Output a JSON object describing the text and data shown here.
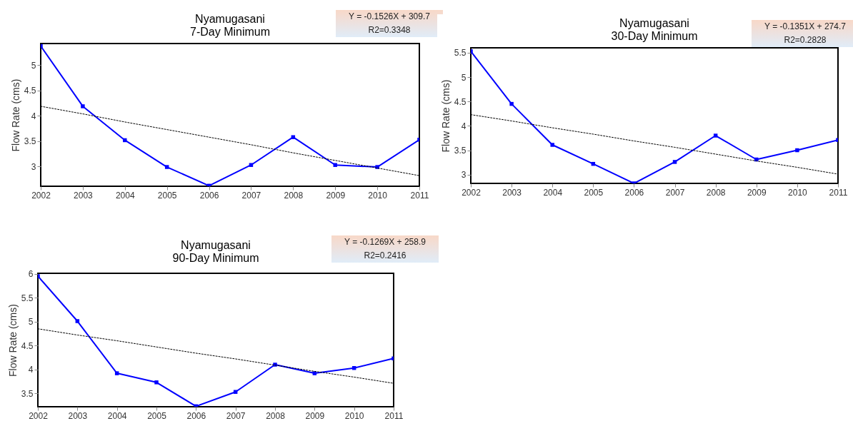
{
  "chart_data": [
    {
      "type": "line",
      "title": "Nyamugasani\n7-Day Minimum",
      "ylabel": "Flow Rate (cms)",
      "annotations": [
        "Y = -0.1526X + 309.7",
        "R2=0.3348"
      ],
      "x": [
        2002,
        2003,
        2004,
        2005,
        2006,
        2007,
        2008,
        2009,
        2010,
        2011
      ],
      "xlim": [
        2002,
        2011
      ],
      "xticks": [
        2002,
        2003,
        2004,
        2005,
        2006,
        2007,
        2008,
        2009,
        2010,
        2011
      ],
      "ylim": [
        2.61,
        5.43
      ],
      "yticks": [
        3,
        3.5,
        4,
        4.5,
        5
      ],
      "grid": false,
      "legend": false,
      "series": [
        {
          "color": "#0000ff",
          "marker": "square",
          "line_style": "solid",
          "values": [
            5.38,
            4.19,
            3.52,
            2.99,
            2.62,
            3.03,
            3.58,
            3.03,
            2.99,
            3.53
          ]
        },
        {
          "type": "line",
          "color": "#000000",
          "marker": "none",
          "line_style": "dotted",
          "values": [
            4.19,
            4.04,
            3.88,
            3.73,
            3.58,
            3.43,
            3.27,
            3.12,
            2.97,
            2.82
          ]
        }
      ]
    },
    {
      "type": "line",
      "title": "Nyamugasani\n30-Day Minimum",
      "ylabel": "Flow Rate (cms)",
      "annotations": [
        "Y = -0.1351X + 274.7",
        "R2=0.2828"
      ],
      "x": [
        2002,
        2003,
        2004,
        2005,
        2006,
        2007,
        2008,
        2009,
        2010,
        2011
      ],
      "xlim": [
        2002,
        2011
      ],
      "xticks": [
        2002,
        2003,
        2004,
        2005,
        2006,
        2007,
        2008,
        2009,
        2010,
        2011
      ],
      "ylim": [
        2.82,
        5.6
      ],
      "yticks": [
        3,
        3.5,
        4,
        4.5,
        5,
        5.5
      ],
      "grid": false,
      "legend": false,
      "series": [
        {
          "color": "#0000ff",
          "marker": "square",
          "line_style": "solid",
          "values": [
            5.53,
            4.45,
            3.61,
            3.22,
            2.82,
            3.26,
            3.8,
            3.31,
            3.5,
            3.71
          ]
        },
        {
          "type": "line",
          "color": "#000000",
          "marker": "none",
          "line_style": "dotted",
          "values": [
            4.23,
            4.1,
            3.96,
            3.83,
            3.69,
            3.56,
            3.42,
            3.28,
            3.15,
            3.01
          ]
        }
      ]
    },
    {
      "type": "line",
      "title": "Nyamugasani\n90-Day Minimum",
      "ylabel": "Flow Rate (cms)",
      "annotations": [
        "Y = -0.1269X + 258.9",
        "R2=0.2416"
      ],
      "x": [
        2002,
        2003,
        2004,
        2005,
        2006,
        2007,
        2008,
        2009,
        2010,
        2011
      ],
      "xlim": [
        2002,
        2011
      ],
      "xticks": [
        2002,
        2003,
        2004,
        2005,
        2006,
        2007,
        2008,
        2009,
        2010,
        2011
      ],
      "ylim": [
        3.22,
        6.01
      ],
      "yticks": [
        3.5,
        4,
        4.5,
        5,
        5.5,
        6
      ],
      "grid": false,
      "legend": false,
      "series": [
        {
          "color": "#0000ff",
          "marker": "square",
          "line_style": "solid",
          "values": [
            5.95,
            5.01,
            3.92,
            3.73,
            3.23,
            3.53,
            4.1,
            3.92,
            4.03,
            4.23
          ]
        },
        {
          "type": "line",
          "color": "#000000",
          "marker": "none",
          "line_style": "dotted",
          "values": [
            4.85,
            4.72,
            4.6,
            4.47,
            4.34,
            4.22,
            4.09,
            3.96,
            3.84,
            3.71
          ]
        }
      ]
    }
  ]
}
